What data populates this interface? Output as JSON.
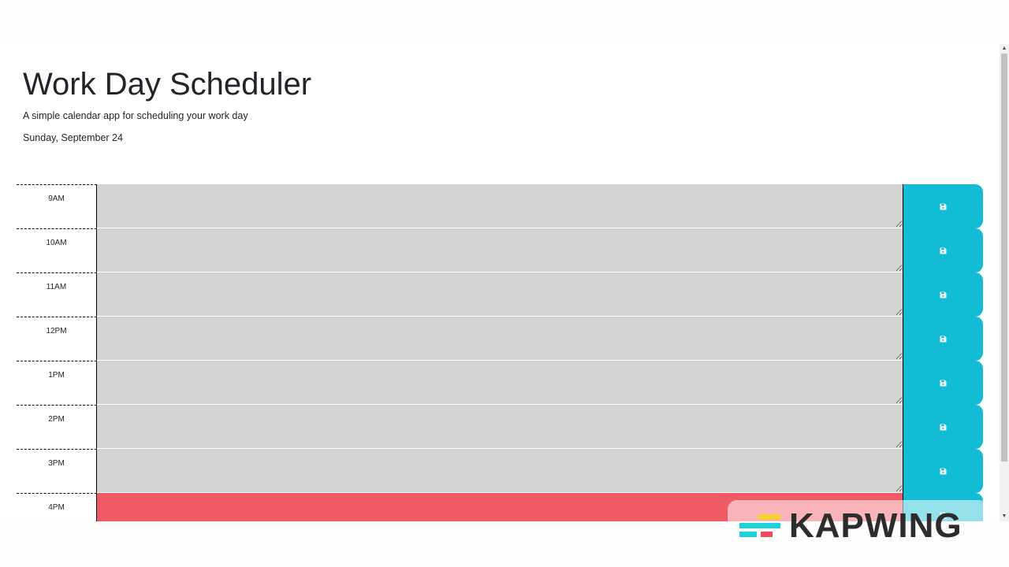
{
  "header": {
    "title": "Work Day Scheduler",
    "subtitle": "A simple calendar app for scheduling your work day",
    "current_day": "Sunday, September 24"
  },
  "time_blocks": [
    {
      "hour": "9AM",
      "status": "past",
      "text": ""
    },
    {
      "hour": "10AM",
      "status": "past",
      "text": ""
    },
    {
      "hour": "11AM",
      "status": "past",
      "text": ""
    },
    {
      "hour": "12PM",
      "status": "past",
      "text": ""
    },
    {
      "hour": "1PM",
      "status": "past",
      "text": ""
    },
    {
      "hour": "2PM",
      "status": "past",
      "text": ""
    },
    {
      "hour": "3PM",
      "status": "past",
      "text": ""
    },
    {
      "hour": "4PM",
      "status": "present",
      "text": ""
    }
  ],
  "save_icon": "floppy-disk-icon",
  "colors": {
    "past": "#d3d3d3",
    "present": "#f05a64",
    "save_button": "#12bcd4"
  },
  "watermark": {
    "text": "KAPWING",
    "logo_icon": "kapwing-logo-icon"
  }
}
